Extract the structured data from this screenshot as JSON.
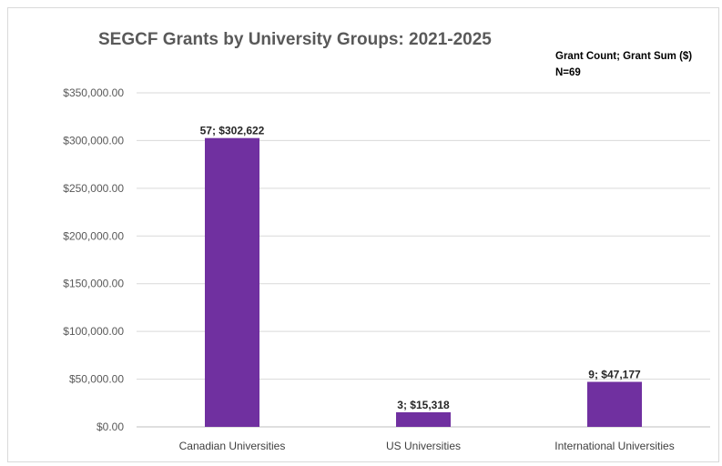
{
  "chart_data": {
    "type": "bar",
    "title": "SEGCF Grants by University Groups: 2021-2025",
    "annotations": [
      "Grant Count; Grant Sum ($)",
      "N=69"
    ],
    "categories": [
      "Canadian Universities",
      "US Universities",
      "International Universities"
    ],
    "values": [
      302622,
      15318,
      47177
    ],
    "data_labels": [
      "57; $302,622",
      "3; $15,318",
      "9; $47,177"
    ],
    "y_ticks": [
      0,
      50000,
      100000,
      150000,
      200000,
      250000,
      300000,
      350000
    ],
    "y_tick_labels": [
      "$0.00",
      "$50,000.00",
      "$100,000.00",
      "$150,000.00",
      "$200,000.00",
      "$250,000.00",
      "$300,000.00",
      "$350,000.00"
    ],
    "ylim": [
      0,
      350000
    ],
    "xlabel": "",
    "ylabel": "",
    "grid": true,
    "legend": "none",
    "bar_color": "#7030a0"
  }
}
